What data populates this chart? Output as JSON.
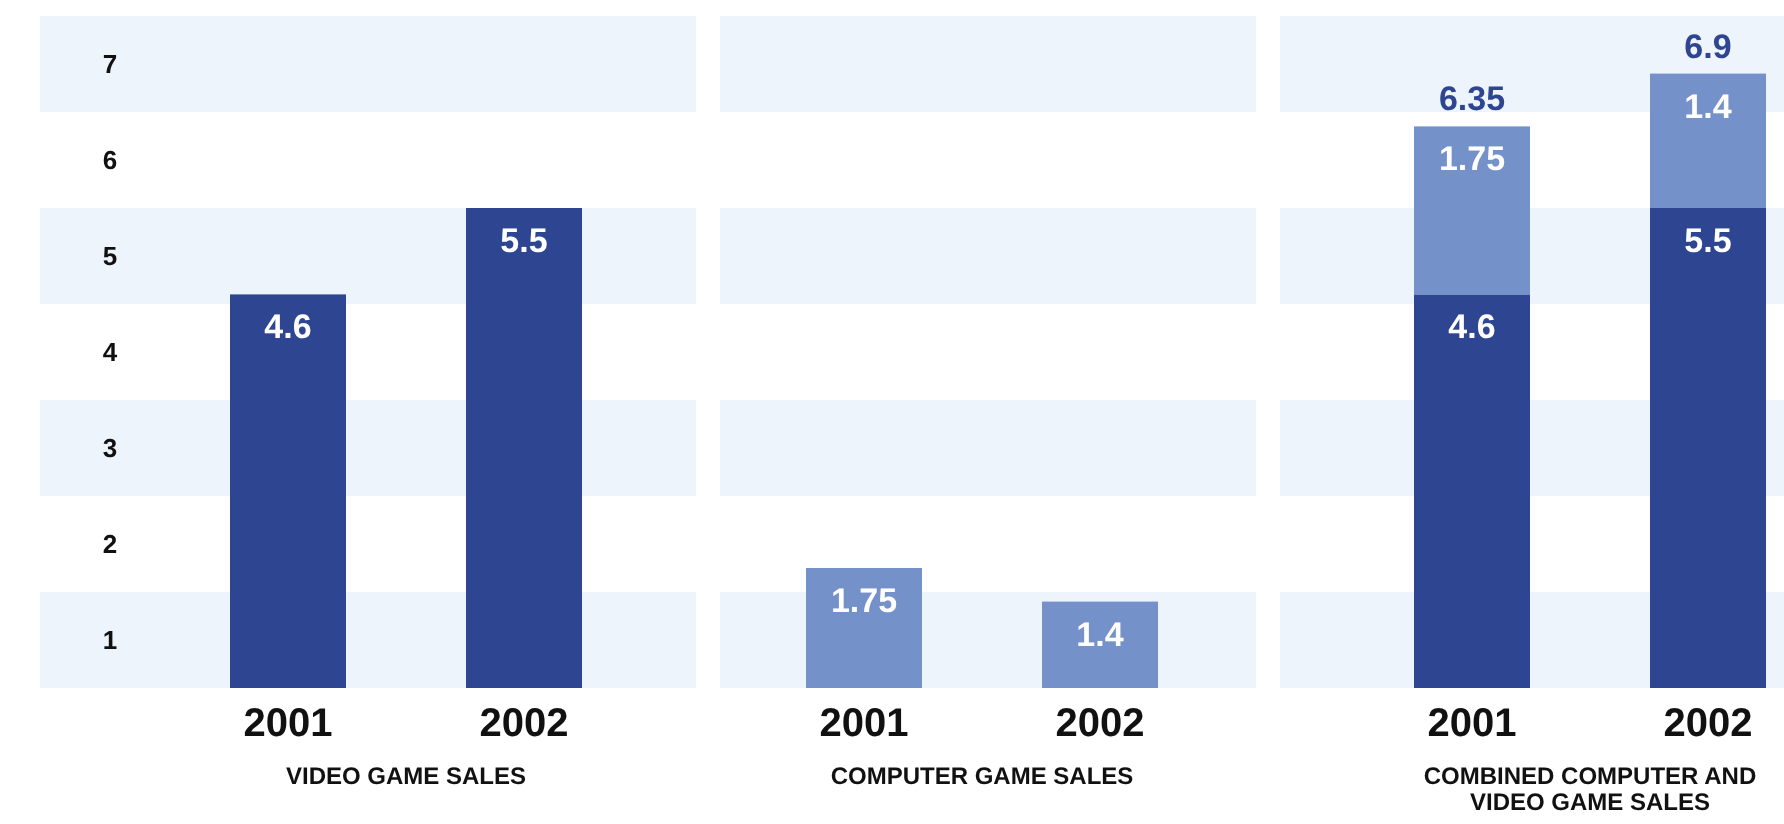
{
  "chart_data": [
    {
      "type": "bar",
      "categories": [
        "2001",
        "2002"
      ],
      "values": [
        4.6,
        5.5
      ],
      "color": "#2e4591",
      "data_labels": true,
      "xlabel": "VIDEO GAME SALES",
      "ylim": [
        0.5,
        7.5
      ],
      "yticks": [
        1,
        2,
        3,
        4,
        5,
        6,
        7
      ],
      "bands": [
        {
          "axis": "y",
          "from": 0.5,
          "to": 1.5,
          "color": "#edf4fc"
        },
        {
          "axis": "y",
          "from": 2.5,
          "to": 3.5,
          "color": "#edf4fc"
        },
        {
          "axis": "y",
          "from": 4.5,
          "to": 5.5,
          "color": "#edf4fc"
        },
        {
          "axis": "y",
          "from": 6.5,
          "to": 7.5,
          "color": "#edf4fc"
        }
      ]
    },
    {
      "type": "bar",
      "categories": [
        "2001",
        "2002"
      ],
      "values": [
        1.75,
        1.4
      ],
      "color": "#7591c9",
      "data_labels": true,
      "xlabel": "COMPUTER GAME SALES",
      "ylim": [
        0.5,
        7.5
      ],
      "yticks": [
        1,
        2,
        3,
        4,
        5,
        6,
        7
      ],
      "bands": [
        {
          "axis": "y",
          "from": 0.5,
          "to": 1.5,
          "color": "#edf4fc"
        },
        {
          "axis": "y",
          "from": 2.5,
          "to": 3.5,
          "color": "#edf4fc"
        },
        {
          "axis": "y",
          "from": 4.5,
          "to": 5.5,
          "color": "#edf4fc"
        },
        {
          "axis": "y",
          "from": 6.5,
          "to": 7.5,
          "color": "#edf4fc"
        }
      ],
      "tick_labels": "x"
    },
    {
      "type": "bar",
      "stacked": true,
      "categories": [
        "2001",
        "2002"
      ],
      "series": [
        {
          "color": "#2e4591",
          "values": [
            4.6,
            5.5
          ]
        },
        {
          "color": "#7591c9",
          "values": [
            1.75,
            1.4
          ]
        }
      ],
      "totals": [
        "6.35",
        "6.9"
      ],
      "data_labels": true,
      "xlabel": "COMBINED COMPUTER AND VIDEO GAME SALES",
      "ylim": [
        0.5,
        7.5
      ],
      "yticks": [
        1,
        2,
        3,
        4,
        5,
        6,
        7
      ],
      "bands": [
        {
          "axis": "y",
          "from": 0.5,
          "to": 1.5,
          "color": "#edf4fc"
        },
        {
          "axis": "y",
          "from": 2.5,
          "to": 3.5,
          "color": "#edf4fc"
        },
        {
          "axis": "y",
          "from": 4.5,
          "to": 5.5,
          "color": "#edf4fc"
        },
        {
          "axis": "y",
          "from": 6.5,
          "to": 7.5,
          "color": "#edf4fc"
        }
      ],
      "tick_labels": "x"
    }
  ]
}
